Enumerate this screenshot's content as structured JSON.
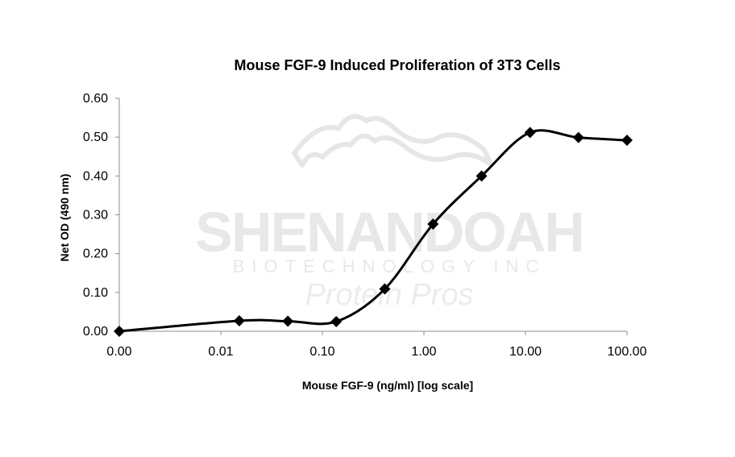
{
  "watermark": {
    "name": "SHENANDOAH",
    "subtitle": "BIOTECHNOLOGY INC",
    "tagline": "Protein Pros",
    "color": "#e3e3e3"
  },
  "chart_data": {
    "type": "line",
    "title": "Mouse FGF-9 Induced Proliferation of 3T3 Cells",
    "xlabel": "Mouse FGF-9 (ng/ml) [log scale]",
    "ylabel": "Net OD (490 nm)",
    "x_scale": "log",
    "x_ticks": [
      "0.00",
      "0.01",
      "0.10",
      "1.00",
      "10.00",
      "100.00"
    ],
    "y_ticks": [
      "0.00",
      "0.10",
      "0.20",
      "0.30",
      "0.40",
      "0.50",
      "0.60"
    ],
    "ylim": [
      0,
      0.6
    ],
    "grid": false,
    "legend": "none",
    "marker": "diamond",
    "line_color": "#000000",
    "series": [
      {
        "x": [
          0.001,
          0.0152,
          0.0457,
          0.137,
          0.412,
          1.23,
          3.7,
          11.1,
          33.3,
          100
        ],
        "y": [
          0.0,
          0.027,
          0.026,
          0.025,
          0.109,
          0.276,
          0.4,
          0.512,
          0.499,
          0.492
        ]
      }
    ]
  }
}
